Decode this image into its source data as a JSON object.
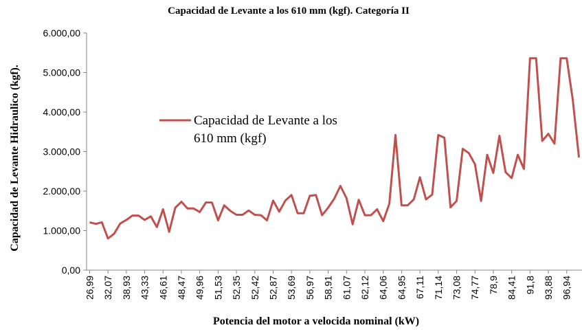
{
  "chart_data": {
    "type": "line",
    "title": "Capacidad  de Levante  a los 610 mm  (kgf). Categoría  II",
    "x_label": "Potencia  del motor  a velocida  nominal  (kW)",
    "y_label": "Capacidad  de Levante  Hidraulico  (kgf).",
    "categories": [
      "26,99",
      null,
      null,
      "32,07",
      null,
      null,
      "38,93",
      null,
      null,
      "43,33",
      null,
      null,
      "46,61",
      null,
      null,
      "48,47",
      null,
      null,
      "49,96",
      null,
      null,
      "51,53",
      null,
      null,
      "52,35",
      null,
      null,
      "52,42",
      null,
      null,
      "52,87",
      null,
      null,
      "53,69",
      null,
      null,
      "56,97",
      null,
      null,
      "58,91",
      null,
      null,
      "61,07",
      null,
      null,
      "62,12",
      null,
      null,
      "64,06",
      null,
      null,
      "64,95",
      null,
      null,
      "67,11",
      null,
      null,
      "71,14",
      null,
      null,
      "73,08",
      null,
      null,
      "74,77",
      null,
      null,
      "78,9",
      null,
      null,
      "84,41",
      null,
      null,
      "91,8",
      null,
      null,
      "93,88",
      null,
      null,
      "96,94",
      null,
      null
    ],
    "series": [
      {
        "name": "Capacidad de Levante a los 610 mm (kgf)",
        "color": "#c0504d",
        "values": [
          1210,
          1170,
          1210,
          800,
          920,
          1180,
          1270,
          1380,
          1380,
          1270,
          1360,
          1090,
          1540,
          970,
          1580,
          1730,
          1560,
          1560,
          1470,
          1710,
          1710,
          1260,
          1640,
          1500,
          1400,
          1400,
          1510,
          1400,
          1390,
          1260,
          1760,
          1480,
          1760,
          1900,
          1440,
          1440,
          1880,
          1900,
          1390,
          1580,
          1810,
          2130,
          1820,
          1160,
          1780,
          1390,
          1390,
          1540,
          1240,
          1680,
          3420,
          1640,
          1640,
          1790,
          2350,
          1790,
          1910,
          3420,
          3350,
          1590,
          1750,
          3070,
          2960,
          2680,
          1750,
          2920,
          2460,
          3400,
          2480,
          2330,
          2920,
          2560,
          5360,
          5360,
          3270,
          3450,
          3200,
          5360,
          5360,
          4300,
          2850
        ]
      }
    ],
    "ylim": [
      0,
      6000
    ],
    "yticks": [
      {
        "value": 0,
        "label": "0,00"
      },
      {
        "value": 1000,
        "label": "1.000,00"
      },
      {
        "value": 2000,
        "label": "2.000,00"
      },
      {
        "value": 3000,
        "label": "3.000,00"
      },
      {
        "value": 4000,
        "label": "4.000,00"
      },
      {
        "value": 5000,
        "label": "5.000,00"
      },
      {
        "value": 6000,
        "label": "6.000,00"
      }
    ],
    "legend_position": "upper left"
  }
}
